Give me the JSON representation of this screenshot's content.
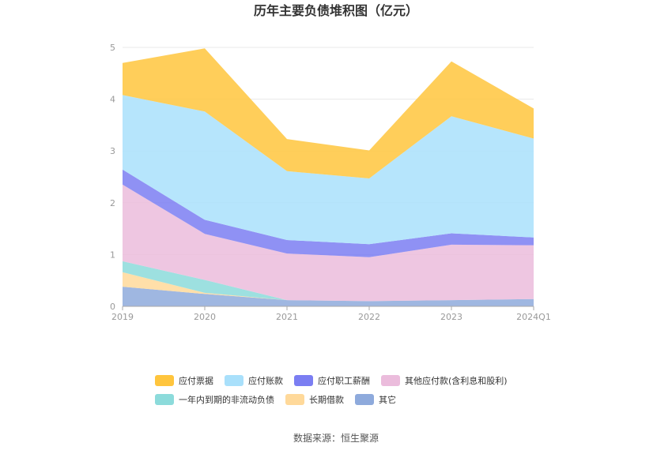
{
  "chart_data": {
    "type": "area",
    "stacked": true,
    "title": "历年主要负债堆积图（亿元）",
    "categories": [
      "2019",
      "2020",
      "2021",
      "2022",
      "2023",
      "2024Q1"
    ],
    "ylim": [
      0,
      5
    ],
    "yticks": [
      "0",
      "1",
      "2",
      "3",
      "4",
      "5"
    ],
    "grid": true,
    "legend_position": "bottom",
    "series": [
      {
        "name": "其它",
        "color": "#8eaadc",
        "values": [
          0.38,
          0.24,
          0.12,
          0.1,
          0.12,
          0.14
        ]
      },
      {
        "name": "长期借款",
        "color": "#ffd99a",
        "values": [
          0.28,
          0.02,
          0.0,
          0.0,
          0.0,
          0.0
        ]
      },
      {
        "name": "一年内到期的非流动负债",
        "color": "#8cdbdb",
        "values": [
          0.21,
          0.25,
          0.0,
          0.0,
          0.0,
          0.0
        ]
      },
      {
        "name": "其他应付款(含利息和股利)",
        "color": "#ebbcdc",
        "values": [
          1.48,
          0.89,
          0.9,
          0.85,
          1.07,
          1.04
        ]
      },
      {
        "name": "应付职工薪酬",
        "color": "#7b7ef2",
        "values": [
          0.29,
          0.27,
          0.26,
          0.25,
          0.22,
          0.15
        ]
      },
      {
        "name": "应付账款",
        "color": "#a9e0fb",
        "values": [
          1.44,
          2.09,
          1.33,
          1.27,
          2.26,
          1.91
        ]
      },
      {
        "name": "应付票据",
        "color": "#ffc53d",
        "values": [
          0.62,
          1.22,
          0.62,
          0.54,
          1.06,
          0.58
        ]
      }
    ]
  },
  "legend": {
    "row1": [
      "应付票据",
      "应付账款",
      "应付职工薪酬",
      "其他应付款(含利息和股利)"
    ],
    "row2": [
      "一年内到期的非流动负债",
      "长期借款",
      "其它"
    ]
  },
  "source_text": "数据来源：恒生聚源"
}
